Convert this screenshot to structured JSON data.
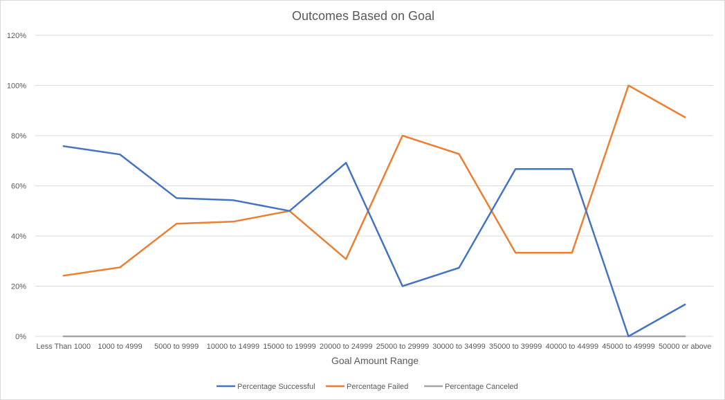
{
  "chart_data": {
    "type": "line",
    "title": "Outcomes Based on Goal",
    "xlabel": "Goal Amount  Range",
    "ylabel": "",
    "ylim": [
      0,
      1.2
    ],
    "y_ticks": [
      0,
      0.2,
      0.4,
      0.6,
      0.8,
      1.0,
      1.2
    ],
    "y_tick_labels": [
      "0%",
      "20%",
      "40%",
      "60%",
      "80%",
      "100%",
      "120%"
    ],
    "grid": true,
    "legend_position": "bottom",
    "categories": [
      "Less Than 1000",
      "1000 to 4999",
      "5000 to 9999",
      "10000 to 14999",
      "15000 to 19999",
      "20000 to 24999",
      "25000 to 29999",
      "30000 to 34999",
      "35000 to 39999",
      "40000 to 44999",
      "45000 to 49999",
      "50000 or above"
    ],
    "series": [
      {
        "name": "Percentage Successful",
        "color": "#4472c4",
        "values": [
          0.758,
          0.725,
          0.551,
          0.543,
          0.5,
          0.692,
          0.2,
          0.273,
          0.667,
          0.667,
          0.0,
          0.127
        ]
      },
      {
        "name": "Percentage Failed",
        "color": "#ed7d31",
        "values": [
          0.242,
          0.275,
          0.449,
          0.457,
          0.5,
          0.308,
          0.8,
          0.727,
          0.333,
          0.333,
          1.0,
          0.873
        ]
      },
      {
        "name": "Percentage Canceled",
        "color": "#a5a5a5",
        "values": [
          0,
          0,
          0,
          0,
          0,
          0,
          0,
          0,
          0,
          0,
          0,
          0
        ]
      }
    ]
  }
}
